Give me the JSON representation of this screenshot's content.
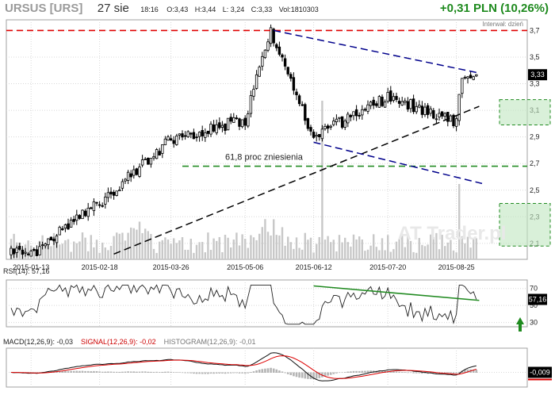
{
  "header": {
    "ticker": "URSUS [URS]",
    "date": "27 sie",
    "time": "18:16",
    "open": "O:3,43",
    "high": "H:3,44",
    "low": "L: 3,24",
    "close": "C:3,33",
    "volume": "Vol:1810303",
    "change": "+0,31 PLN (10,26%)"
  },
  "interval_label": "Interwał: dzień",
  "watermark": "AT Trader.pl",
  "annotation_fib": "61,8 proc zniesienia",
  "colors": {
    "candle": "#000000",
    "red_line": "#e00000",
    "blue_line": "#00008b",
    "green_line": "#228b22",
    "green_zone": "#bfe6bf",
    "volume": "#c8c8c8",
    "frame": "#a0a0a0",
    "grid": "#d8d8d8"
  },
  "chart_data": [
    {
      "type": "candlestick",
      "title": "URSUS [URS]",
      "x_labels": [
        "2015-01-13",
        "2015-02-18",
        "2015-03-26",
        "2015-05-06",
        "2015-06-12",
        "2015-07-20",
        "2015-08-25"
      ],
      "y_ticks": [
        "3,7",
        "3,5",
        "3,3",
        "3,1",
        "2,9",
        "2,7",
        "2,5",
        "2,3",
        "2,1"
      ],
      "ylim": [
        1.98,
        3.78
      ],
      "last_price_label": "3,33",
      "key_points": [
        {
          "date": "2015-01-13",
          "close": 2.02
        },
        {
          "date": "2015-02-18",
          "close": 2.4
        },
        {
          "date": "2015-03-26",
          "close": 2.88
        },
        {
          "date": "2015-05-06",
          "close": 3.03
        },
        {
          "date": "2015-05-20",
          "close": 3.7
        },
        {
          "date": "2015-06-12",
          "close": 2.9
        },
        {
          "date": "2015-07-20",
          "close": 3.2
        },
        {
          "date": "2015-08-25",
          "close": 3.02
        },
        {
          "date": "2015-08-27",
          "close": 3.33
        }
      ],
      "volume_note": "volume bars without scale",
      "levels": [
        {
          "name": "resistance",
          "value": 3.7,
          "color": "red",
          "style": "dashed"
        },
        {
          "name": "61,8 proc zniesienia",
          "value": 2.68,
          "color": "green",
          "style": "dashed"
        }
      ],
      "zones": [
        {
          "price_from": 2.99,
          "price_to": 3.18
        },
        {
          "price_from": 2.08,
          "price_to": 2.4
        }
      ]
    },
    {
      "type": "line",
      "label": "RSI(14): 57,16",
      "last_value": 57.16,
      "last_value_label": "57,16",
      "y_ticks": [
        "70",
        "50",
        "30"
      ],
      "ylim": [
        25,
        80
      ]
    },
    {
      "type": "line",
      "label": "MACD(12,26,9): -0,03",
      "signal_label": "SIGNAL(12,26,9): -0,02",
      "histogram_label": "HISTOGRAM(12,26,9): -0,01",
      "last_value_label": "-0,009"
    }
  ]
}
